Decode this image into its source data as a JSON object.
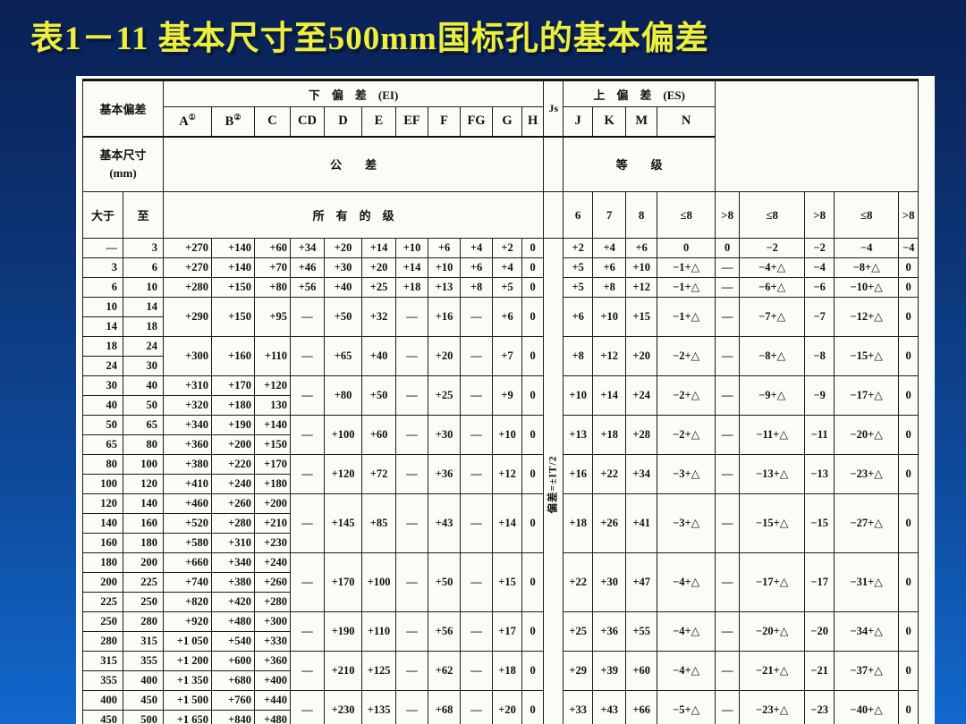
{
  "title": "表1－11  基本尺寸至500mm国标孔的基本偏差",
  "table": {
    "header": {
      "base_dev_label": "基本偏差",
      "lower_dev_label": "下　偏　差　(EI)",
      "js_label": "Js",
      "upper_dev_label": "上　偏　差　(ES)",
      "lower_cols": [
        "A",
        "B",
        "C",
        "CD",
        "D",
        "E",
        "EF",
        "F",
        "FG",
        "G",
        "H"
      ],
      "a_sup": "①",
      "b_sup": "②",
      "upper_cols": [
        "J",
        "K",
        "M",
        "N"
      ],
      "base_size_line1": "基本尺寸",
      "base_size_line2": "(mm)",
      "tol_label_left": "公　　差",
      "tol_label_right": "等　　级",
      "over_label": "大于",
      "to_label": "至",
      "all_grades_label": "所　有　的　级",
      "grade_cols": [
        "6",
        "7",
        "8",
        "≤8",
        ">8",
        "≤8",
        ">8",
        "≤8",
        ">8"
      ],
      "js_note": "偏差=±IT/2"
    },
    "groups": [
      {
        "sizes": [
          [
            "—",
            "3"
          ]
        ],
        "abc_merged": false,
        "abc": [
          [
            "+270",
            "+140",
            "+60"
          ]
        ],
        "mid": [
          "+34",
          "+20",
          "+14",
          "+10",
          "+6",
          "+4",
          "+2",
          "0"
        ],
        "right": [
          "+2",
          "+4",
          "+6",
          "0",
          "0",
          "−2",
          "−2",
          "−4",
          "−4"
        ]
      },
      {
        "sizes": [
          [
            "3",
            "6"
          ]
        ],
        "abc_merged": false,
        "abc": [
          [
            "+270",
            "+140",
            "+70"
          ]
        ],
        "mid": [
          "+46",
          "+30",
          "+20",
          "+14",
          "+10",
          "+6",
          "+4",
          "0"
        ],
        "right": [
          "+5",
          "+6",
          "+10",
          "−1+△",
          "—",
          "−4+△",
          "−4",
          "−8+△",
          "0"
        ]
      },
      {
        "sizes": [
          [
            "6",
            "10"
          ]
        ],
        "abc_merged": false,
        "abc": [
          [
            "+280",
            "+150",
            "+80"
          ]
        ],
        "mid": [
          "+56",
          "+40",
          "+25",
          "+18",
          "+13",
          "+8",
          "+5",
          "0"
        ],
        "right": [
          "+5",
          "+8",
          "+12",
          "−1+△",
          "—",
          "−6+△",
          "−6",
          "−10+△",
          "0"
        ]
      },
      {
        "sizes": [
          [
            "10",
            "14"
          ],
          [
            "14",
            "18"
          ]
        ],
        "abc_merged": true,
        "abc": [
          "+290",
          "+150",
          "+95"
        ],
        "mid": [
          "—",
          "+50",
          "+32",
          "—",
          "+16",
          "—",
          "+6",
          "0"
        ],
        "right": [
          "+6",
          "+10",
          "+15",
          "−1+△",
          "—",
          "−7+△",
          "−7",
          "−12+△",
          "0"
        ]
      },
      {
        "sizes": [
          [
            "18",
            "24"
          ],
          [
            "24",
            "30"
          ]
        ],
        "abc_merged": true,
        "abc": [
          "+300",
          "+160",
          "+110"
        ],
        "mid": [
          "—",
          "+65",
          "+40",
          "—",
          "+20",
          "—",
          "+7",
          "0"
        ],
        "right": [
          "+8",
          "+12",
          "+20",
          "−2+△",
          "—",
          "−8+△",
          "−8",
          "−15+△",
          "0"
        ]
      },
      {
        "sizes": [
          [
            "30",
            "40"
          ],
          [
            "40",
            "50"
          ]
        ],
        "abc_merged": false,
        "abc": [
          [
            "+310",
            "+170",
            "+120"
          ],
          [
            "+320",
            "+180",
            "130"
          ]
        ],
        "mid": [
          "—",
          "+80",
          "+50",
          "—",
          "+25",
          "—",
          "+9",
          "0"
        ],
        "right": [
          "+10",
          "+14",
          "+24",
          "−2+△",
          "—",
          "−9+△",
          "−9",
          "−17+△",
          "0"
        ]
      },
      {
        "sizes": [
          [
            "50",
            "65"
          ],
          [
            "65",
            "80"
          ]
        ],
        "abc_merged": false,
        "abc": [
          [
            "+340",
            "+190",
            "+140"
          ],
          [
            "+360",
            "+200",
            "+150"
          ]
        ],
        "mid": [
          "—",
          "+100",
          "+60",
          "—",
          "+30",
          "—",
          "+10",
          "0"
        ],
        "right": [
          "+13",
          "+18",
          "+28",
          "−2+△",
          "—",
          "−11+△",
          "−11",
          "−20+△",
          "0"
        ]
      },
      {
        "sizes": [
          [
            "80",
            "100"
          ],
          [
            "100",
            "120"
          ]
        ],
        "abc_merged": false,
        "abc": [
          [
            "+380",
            "+220",
            "+170"
          ],
          [
            "+410",
            "+240",
            "+180"
          ]
        ],
        "mid": [
          "—",
          "+120",
          "+72",
          "—",
          "+36",
          "—",
          "+12",
          "0"
        ],
        "right": [
          "+16",
          "+22",
          "+34",
          "−3+△",
          "—",
          "−13+△",
          "−13",
          "−23+△",
          "0"
        ]
      },
      {
        "sizes": [
          [
            "120",
            "140"
          ],
          [
            "140",
            "160"
          ],
          [
            "160",
            "180"
          ]
        ],
        "abc_merged": false,
        "abc": [
          [
            "+460",
            "+260",
            "+200"
          ],
          [
            "+520",
            "+280",
            "+210"
          ],
          [
            "+580",
            "+310",
            "+230"
          ]
        ],
        "mid": [
          "—",
          "+145",
          "+85",
          "—",
          "+43",
          "—",
          "+14",
          "0"
        ],
        "right": [
          "+18",
          "+26",
          "+41",
          "−3+△",
          "—",
          "−15+△",
          "−15",
          "−27+△",
          "0"
        ]
      },
      {
        "sizes": [
          [
            "180",
            "200"
          ],
          [
            "200",
            "225"
          ],
          [
            "225",
            "250"
          ]
        ],
        "abc_merged": false,
        "abc": [
          [
            "+660",
            "+340",
            "+240"
          ],
          [
            "+740",
            "+380",
            "+260"
          ],
          [
            "+820",
            "+420",
            "+280"
          ]
        ],
        "mid": [
          "—",
          "+170",
          "+100",
          "—",
          "+50",
          "—",
          "+15",
          "0"
        ],
        "right": [
          "+22",
          "+30",
          "+47",
          "−4+△",
          "—",
          "−17+△",
          "−17",
          "−31+△",
          "0"
        ]
      },
      {
        "sizes": [
          [
            "250",
            "280"
          ],
          [
            "280",
            "315"
          ]
        ],
        "abc_merged": false,
        "abc": [
          [
            "+920",
            "+480",
            "+300"
          ],
          [
            "+1 050",
            "+540",
            "+330"
          ]
        ],
        "mid": [
          "—",
          "+190",
          "+110",
          "—",
          "+56",
          "—",
          "+17",
          "0"
        ],
        "right": [
          "+25",
          "+36",
          "+55",
          "−4+△",
          "—",
          "−20+△",
          "−20",
          "−34+△",
          "0"
        ]
      },
      {
        "sizes": [
          [
            "315",
            "355"
          ],
          [
            "355",
            "400"
          ]
        ],
        "abc_merged": false,
        "abc": [
          [
            "+1 200",
            "+600",
            "+360"
          ],
          [
            "+1 350",
            "+680",
            "+400"
          ]
        ],
        "mid": [
          "—",
          "+210",
          "+125",
          "—",
          "+62",
          "—",
          "+18",
          "0"
        ],
        "right": [
          "+29",
          "+39",
          "+60",
          "−4+△",
          "—",
          "−21+△",
          "−21",
          "−37+△",
          "0"
        ]
      },
      {
        "sizes": [
          [
            "400",
            "450"
          ],
          [
            "450",
            "500"
          ]
        ],
        "abc_merged": false,
        "abc": [
          [
            "+1 500",
            "+760",
            "+440"
          ],
          [
            "+1 650",
            "+840",
            "+480"
          ]
        ],
        "mid": [
          "—",
          "+230",
          "+135",
          "—",
          "+68",
          "—",
          "+20",
          "0"
        ],
        "right": [
          "+33",
          "+43",
          "+66",
          "−5+△",
          "—",
          "−23+△",
          "−23",
          "−40+△",
          "0"
        ]
      }
    ]
  }
}
